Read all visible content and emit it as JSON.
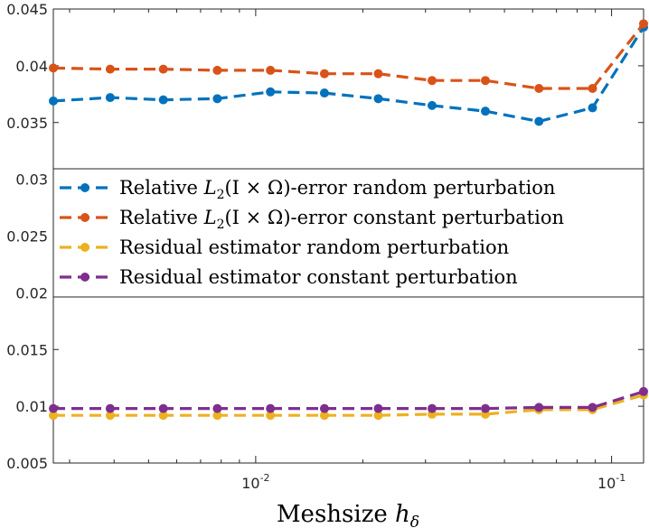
{
  "chart_data": {
    "type": "line",
    "title": "",
    "xlabel": "Meshsize",
    "xlabel_symbol": "h",
    "xlabel_subscript": "δ",
    "ylabel": "",
    "xscale": "log",
    "xlim": [
      0.0027,
      0.123
    ],
    "ylim": [
      0.005,
      0.045
    ],
    "grid": false,
    "legend_position": "center",
    "yticks": [
      "0.005",
      "0.01",
      "0.015",
      "0.02",
      "0.025",
      "0.03",
      "0.035",
      "0.04",
      "0.045"
    ],
    "yticks_values": [
      0.005,
      0.01,
      0.015,
      0.02,
      0.025,
      0.03,
      0.035,
      0.04,
      0.045
    ],
    "xticks": [
      {
        "value": 0.01,
        "base": "10",
        "exp": "-2"
      },
      {
        "value": 0.1,
        "base": "10",
        "exp": "-1"
      }
    ],
    "x": [
      0.0027,
      0.0039,
      0.0055,
      0.0078,
      0.011,
      0.0156,
      0.0221,
      0.0313,
      0.0442,
      0.0625,
      0.0884,
      0.123
    ],
    "series": [
      {
        "name": "Relative L2(I × Ω)-error random perturbation",
        "legend_prefix": "Relative ",
        "legend_math": "L",
        "legend_math_sub": "2",
        "legend_math_args": "(I × Ω)",
        "legend_suffix": "-error random perturbation",
        "color": "#0072BD",
        "values": [
          0.0369,
          0.0372,
          0.037,
          0.0371,
          0.0377,
          0.0376,
          0.0371,
          0.0365,
          0.036,
          0.0351,
          0.0363,
          0.0434
        ]
      },
      {
        "name": "Relative L2(I × Ω)-error constant perturbation",
        "legend_prefix": "Relative ",
        "legend_math": "L",
        "legend_math_sub": "2",
        "legend_math_args": "(I × Ω)",
        "legend_suffix": "-error constant perturbation",
        "color": "#D95319",
        "values": [
          0.0398,
          0.0397,
          0.0397,
          0.0396,
          0.0396,
          0.0393,
          0.0393,
          0.0387,
          0.0387,
          0.038,
          0.038,
          0.0437
        ]
      },
      {
        "name": "Residual estimator random perturbation",
        "legend_prefix": "Residual estimator random perturbation",
        "color": "#EDB120",
        "values": [
          0.0092,
          0.0092,
          0.0092,
          0.0092,
          0.0092,
          0.0092,
          0.0092,
          0.0093,
          0.0093,
          0.0097,
          0.0097,
          0.011
        ]
      },
      {
        "name": "Residual estimator constant perturbation",
        "legend_prefix": "Residual estimator constant perturbation",
        "color": "#7E2F8E",
        "values": [
          0.0098,
          0.0098,
          0.0098,
          0.0098,
          0.0098,
          0.0098,
          0.0098,
          0.0098,
          0.0098,
          0.0099,
          0.0099,
          0.0113
        ]
      }
    ]
  }
}
